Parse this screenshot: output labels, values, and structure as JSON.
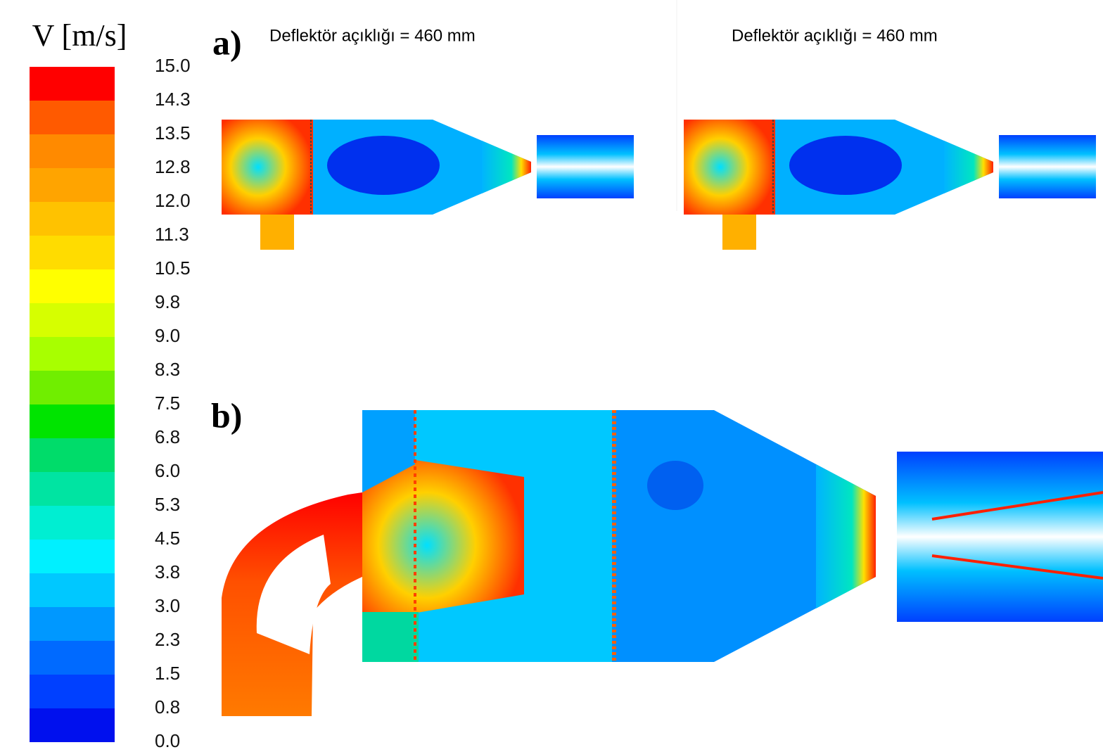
{
  "colorbar": {
    "title": "V [m/s]",
    "ticks": [
      {
        "value": 15.0,
        "label": "15.0"
      },
      {
        "value": 14.25,
        "label": "14.3"
      },
      {
        "value": 13.5,
        "label": "13.5"
      },
      {
        "value": 12.75,
        "label": "12.8"
      },
      {
        "value": 12.0,
        "label": "12.0"
      },
      {
        "value": 11.25,
        "label": "11.3"
      },
      {
        "value": 10.5,
        "label": "10.5"
      },
      {
        "value": 9.75,
        "label": "9.8"
      },
      {
        "value": 9.0,
        "label": "9.0"
      },
      {
        "value": 8.25,
        "label": "8.3"
      },
      {
        "value": 7.5,
        "label": "7.5"
      },
      {
        "value": 6.75,
        "label": "6.8"
      },
      {
        "value": 6.0,
        "label": "6.0"
      },
      {
        "value": 5.25,
        "label": "5.3"
      },
      {
        "value": 4.5,
        "label": "4.5"
      },
      {
        "value": 3.75,
        "label": "3.8"
      },
      {
        "value": 3.0,
        "label": "3.0"
      },
      {
        "value": 2.25,
        "label": "2.3"
      },
      {
        "value": 1.5,
        "label": "1.5"
      },
      {
        "value": 0.75,
        "label": "0.8"
      },
      {
        "value": 0.0,
        "label": "0.0"
      }
    ],
    "colors": [
      "#ff0000",
      "#ff5a00",
      "#ff8a00",
      "#ffa400",
      "#ffc200",
      "#ffdc00",
      "#ffff00",
      "#d6ff00",
      "#a8ff00",
      "#70ee00",
      "#00e400",
      "#00dc6a",
      "#00e4a2",
      "#00eed2",
      "#00f0ff",
      "#00c8ff",
      "#0098ff",
      "#006aff",
      "#0040ff",
      "#0010ee"
    ]
  },
  "panels": [
    {
      "label": "a)",
      "captions": [
        "Deflektör açıklığı = 460 mm",
        "Deflektör açıklığı = 460 mm"
      ]
    },
    {
      "label": "b)"
    }
  ]
}
